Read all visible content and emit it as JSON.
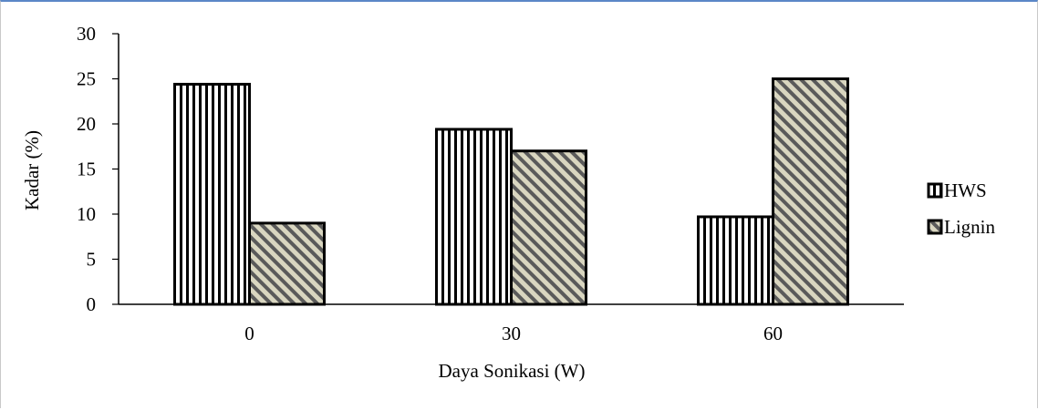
{
  "chart_data": {
    "type": "bar",
    "categories": [
      "0",
      "30",
      "60"
    ],
    "series": [
      {
        "name": "HWS",
        "values": [
          24.4,
          19.4,
          9.7
        ],
        "pattern": "vertical-stripes"
      },
      {
        "name": "Lignin",
        "values": [
          9.0,
          17.0,
          25.0
        ],
        "pattern": "diagonal-stripes"
      }
    ],
    "xlabel": "Daya Sonikasi (W)",
    "ylabel": "Kadar (%)",
    "ylim": [
      0,
      30
    ],
    "yticks": [
      "0",
      "5",
      "10",
      "15",
      "20",
      "25",
      "30"
    ],
    "grid": false,
    "legend": "right",
    "colors": {
      "bar_outline": "#000000",
      "hatch_light": "#d9d6c0",
      "hatch_dark": "#5a5a5a"
    }
  }
}
